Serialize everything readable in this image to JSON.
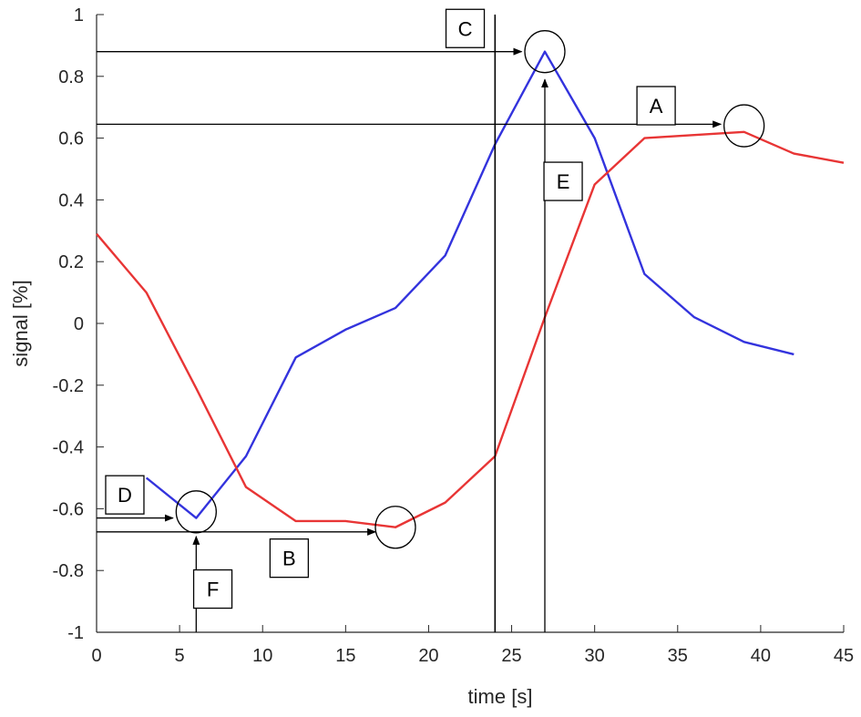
{
  "chart_data": {
    "type": "line",
    "xlabel": "time [s]",
    "ylabel": "signal [%]",
    "xlim": [
      0,
      45
    ],
    "ylim": [
      -1,
      1
    ],
    "xticks": [
      "0",
      "5",
      "10",
      "15",
      "20",
      "25",
      "30",
      "35",
      "40",
      "45"
    ],
    "yticks": [
      "-1",
      "-0.8",
      "-0.6",
      "-0.4",
      "-0.2",
      "0",
      "0.2",
      "0.4",
      "0.6",
      "0.8",
      "1"
    ],
    "grid": false,
    "legend": "none",
    "series": [
      {
        "color": "#3333dd",
        "points": [
          [
            3,
            -0.5
          ],
          [
            6,
            -0.63
          ],
          [
            9,
            -0.43
          ],
          [
            12,
            -0.11
          ],
          [
            15,
            -0.02
          ],
          [
            18,
            0.05
          ],
          [
            21,
            0.22
          ],
          [
            24,
            0.58
          ],
          [
            27,
            0.88
          ],
          [
            30,
            0.6
          ],
          [
            33,
            0.16
          ],
          [
            36,
            0.02
          ],
          [
            39,
            -0.06
          ],
          [
            42,
            -0.1
          ]
        ]
      },
      {
        "color": "#e83535",
        "points": [
          [
            0,
            0.29
          ],
          [
            3,
            0.1
          ],
          [
            6,
            -0.21
          ],
          [
            9,
            -0.53
          ],
          [
            12,
            -0.64
          ],
          [
            15,
            -0.64
          ],
          [
            18,
            -0.66
          ],
          [
            21,
            -0.58
          ],
          [
            24,
            -0.43
          ],
          [
            27,
            0.02
          ],
          [
            30,
            0.45
          ],
          [
            33,
            0.6
          ],
          [
            36,
            0.61
          ],
          [
            39,
            0.62
          ],
          [
            42,
            0.55
          ],
          [
            45,
            0.52
          ]
        ]
      }
    ],
    "annotations": {
      "vertical_line_x": 24,
      "circles": [
        {
          "x": 27,
          "y": 0.88
        },
        {
          "x": 39,
          "y": 0.64
        },
        {
          "x": 6,
          "y": -0.61
        },
        {
          "x": 18,
          "y": -0.66
        }
      ],
      "arrows": [
        {
          "from": [
            0,
            0.88
          ],
          "to": [
            25.6,
            0.88
          ]
        },
        {
          "from": [
            0,
            0.645
          ],
          "to": [
            37.6,
            0.645
          ]
        },
        {
          "from": [
            0,
            -0.63
          ],
          "to": [
            4.6,
            -0.63
          ]
        },
        {
          "from": [
            0,
            -0.675
          ],
          "to": [
            16.8,
            -0.675
          ]
        },
        {
          "from": [
            27,
            -1
          ],
          "to": [
            27,
            0.79
          ]
        },
        {
          "from": [
            6,
            -1
          ],
          "to": [
            6,
            -0.69
          ]
        }
      ],
      "labels": [
        {
          "text": "A",
          "x": 33.7,
          "y": 0.705
        },
        {
          "text": "B",
          "x": 11.6,
          "y": -0.76
        },
        {
          "text": "C",
          "x": 22.2,
          "y": 0.955
        },
        {
          "text": "D",
          "x": 1.7,
          "y": -0.555
        },
        {
          "text": "E",
          "x": 28.1,
          "y": 0.46
        },
        {
          "text": "F",
          "x": 7.0,
          "y": -0.86
        }
      ]
    }
  }
}
